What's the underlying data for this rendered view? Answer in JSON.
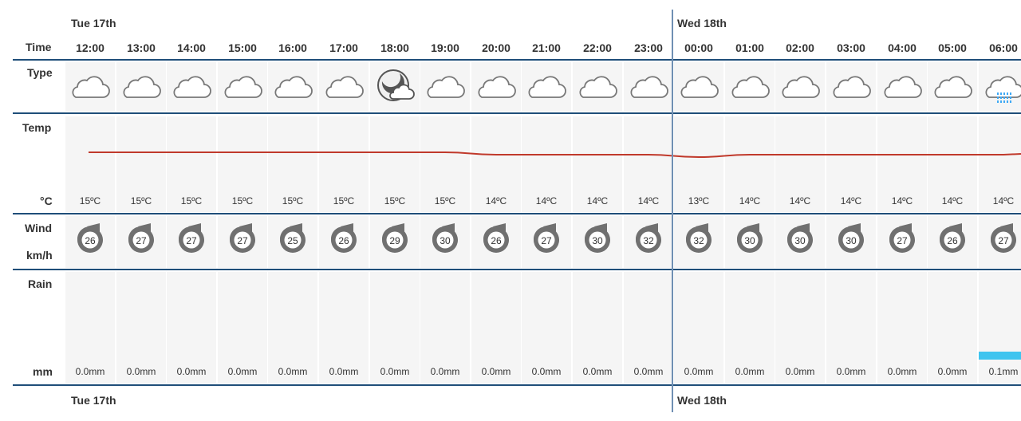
{
  "days": {
    "top_first": "Tue 17th",
    "top_second": "Wed 18th",
    "bottom_first": "Tue 17th",
    "bottom_second": "Wed 18th"
  },
  "labels": {
    "time": "Time",
    "type": "Type",
    "temp": "Temp",
    "temp_unit": "°C",
    "wind": "Wind",
    "wind_unit": "km/h",
    "rain": "Rain",
    "rain_unit": "mm"
  },
  "hours": [
    {
      "time": "12:00",
      "type": "cloud-icon",
      "temp": "15ºC",
      "wind": "26",
      "rain": "0.0mm"
    },
    {
      "time": "13:00",
      "type": "cloud-icon",
      "temp": "15ºC",
      "wind": "27",
      "rain": "0.0mm"
    },
    {
      "time": "14:00",
      "type": "cloud-icon",
      "temp": "15ºC",
      "wind": "27",
      "rain": "0.0mm"
    },
    {
      "time": "15:00",
      "type": "cloud-icon",
      "temp": "15ºC",
      "wind": "27",
      "rain": "0.0mm"
    },
    {
      "time": "16:00",
      "type": "cloud-icon",
      "temp": "15ºC",
      "wind": "25",
      "rain": "0.0mm"
    },
    {
      "time": "17:00",
      "type": "cloud-icon",
      "temp": "15ºC",
      "wind": "26",
      "rain": "0.0mm"
    },
    {
      "time": "18:00",
      "type": "moon-cloud-icon",
      "temp": "15ºC",
      "wind": "29",
      "rain": "0.0mm"
    },
    {
      "time": "19:00",
      "type": "cloud-icon",
      "temp": "15ºC",
      "wind": "30",
      "rain": "0.0mm"
    },
    {
      "time": "20:00",
      "type": "cloud-icon",
      "temp": "14ºC",
      "wind": "26",
      "rain": "0.0mm"
    },
    {
      "time": "21:00",
      "type": "cloud-icon",
      "temp": "14ºC",
      "wind": "27",
      "rain": "0.0mm"
    },
    {
      "time": "22:00",
      "type": "cloud-icon",
      "temp": "14ºC",
      "wind": "30",
      "rain": "0.0mm"
    },
    {
      "time": "23:00",
      "type": "cloud-icon",
      "temp": "14ºC",
      "wind": "32",
      "rain": "0.0mm"
    },
    {
      "time": "00:00",
      "type": "cloud-icon",
      "temp": "13ºC",
      "wind": "32",
      "rain": "0.0mm"
    },
    {
      "time": "01:00",
      "type": "cloud-icon",
      "temp": "14ºC",
      "wind": "30",
      "rain": "0.0mm"
    },
    {
      "time": "02:00",
      "type": "cloud-icon",
      "temp": "14ºC",
      "wind": "30",
      "rain": "0.0mm"
    },
    {
      "time": "03:00",
      "type": "cloud-icon",
      "temp": "14ºC",
      "wind": "30",
      "rain": "0.0mm"
    },
    {
      "time": "04:00",
      "type": "cloud-icon",
      "temp": "14ºC",
      "wind": "27",
      "rain": "0.0mm"
    },
    {
      "time": "05:00",
      "type": "cloud-icon",
      "temp": "14ºC",
      "wind": "26",
      "rain": "0.0mm"
    },
    {
      "time": "06:00",
      "type": "rain-cloud-icon",
      "temp": "14ºC",
      "wind": "27",
      "rain": "0.1mm"
    }
  ],
  "colors": {
    "row_line": "#1f4e79",
    "day_divider": "#6f8fb3",
    "temp_line": "#c0392b",
    "wind_icon": "#707070",
    "rain_bar": "#3fc4ef",
    "rain_drops": "#3fa9f5"
  }
}
